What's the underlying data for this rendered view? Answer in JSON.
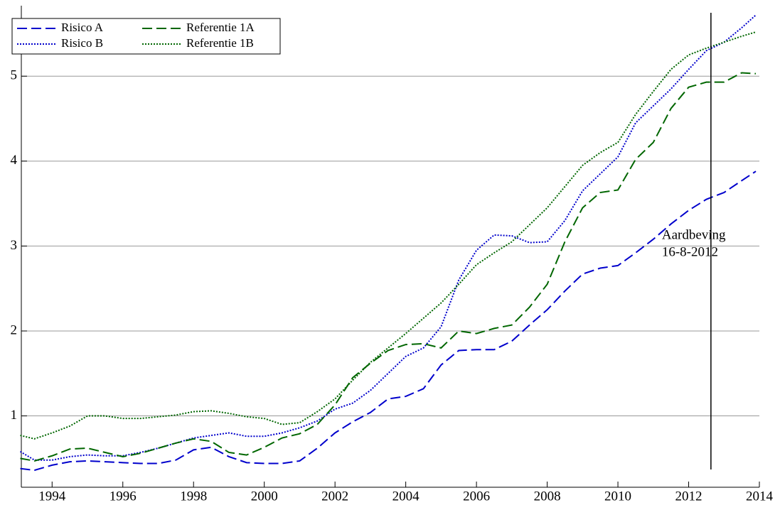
{
  "chart_data": {
    "type": "line",
    "x": [
      1993.1,
      1993.5,
      1994,
      1994.5,
      1995,
      1995.5,
      1996,
      1996.5,
      1997,
      1997.5,
      1998,
      1998.5,
      1999,
      1999.5,
      2000,
      2000.5,
      2001,
      2001.5,
      2002,
      2002.5,
      2003,
      2003.5,
      2004,
      2004.5,
      2005,
      2005.5,
      2006,
      2006.5,
      2007,
      2007.5,
      2008,
      2008.5,
      2009,
      2009.5,
      2010,
      2010.5,
      2011,
      2011.5,
      2012,
      2012.5,
      2013,
      2013.5,
      2013.9
    ],
    "series": [
      {
        "name": "Risico A",
        "color": "#0000cc",
        "dash": "dashed",
        "values": [
          0.38,
          0.36,
          0.42,
          0.46,
          0.47,
          0.46,
          0.45,
          0.44,
          0.44,
          0.48,
          0.6,
          0.63,
          0.52,
          0.45,
          0.44,
          0.44,
          0.47,
          0.62,
          0.8,
          0.93,
          1.04,
          1.2,
          1.23,
          1.32,
          1.6,
          1.77,
          1.78,
          1.78,
          1.88,
          2.07,
          2.25,
          2.47,
          2.67,
          2.74,
          2.77,
          2.92,
          3.08,
          3.26,
          3.42,
          3.55,
          3.63,
          3.77,
          3.88
        ]
      },
      {
        "name": "Risico B",
        "color": "#0000cc",
        "dash": "dotted",
        "values": [
          0.58,
          0.48,
          0.48,
          0.52,
          0.54,
          0.53,
          0.53,
          0.57,
          0.62,
          0.68,
          0.74,
          0.77,
          0.8,
          0.76,
          0.76,
          0.8,
          0.86,
          0.94,
          1.08,
          1.15,
          1.3,
          1.5,
          1.7,
          1.8,
          2.05,
          2.6,
          2.95,
          3.13,
          3.12,
          3.04,
          3.05,
          3.3,
          3.65,
          3.85,
          4.05,
          4.45,
          4.65,
          4.85,
          5.08,
          5.3,
          5.4,
          5.57,
          5.72
        ]
      },
      {
        "name": "Referentie 1A",
        "color": "#006600",
        "dash": "dashed",
        "values": [
          0.5,
          0.47,
          0.53,
          0.61,
          0.62,
          0.57,
          0.52,
          0.56,
          0.62,
          0.68,
          0.73,
          0.7,
          0.57,
          0.54,
          0.63,
          0.74,
          0.79,
          0.9,
          1.13,
          1.45,
          1.62,
          1.77,
          1.84,
          1.85,
          1.8,
          2.0,
          1.97,
          2.03,
          2.07,
          2.28,
          2.55,
          3.05,
          3.45,
          3.63,
          3.66,
          4.02,
          4.22,
          4.62,
          4.87,
          4.93,
          4.93,
          5.04,
          5.03
        ]
      },
      {
        "name": "Referentie 1B",
        "color": "#006600",
        "dash": "dotted",
        "values": [
          0.77,
          0.73,
          0.8,
          0.88,
          1.0,
          1.0,
          0.97,
          0.97,
          0.99,
          1.01,
          1.05,
          1.06,
          1.03,
          0.99,
          0.97,
          0.9,
          0.92,
          1.05,
          1.2,
          1.42,
          1.63,
          1.8,
          1.97,
          2.15,
          2.33,
          2.55,
          2.78,
          2.92,
          3.05,
          3.25,
          3.45,
          3.7,
          3.95,
          4.1,
          4.22,
          4.55,
          4.82,
          5.08,
          5.25,
          5.33,
          5.4,
          5.47,
          5.52
        ]
      }
    ],
    "xlim": [
      1993.13,
      2014
    ],
    "xticks": [
      1994,
      1996,
      1998,
      2000,
      2002,
      2004,
      2006,
      2008,
      2010,
      2012,
      2014
    ],
    "ylim": [
      0.16,
      5.83
    ],
    "yticks": [
      1,
      2,
      3,
      4,
      5
    ],
    "grid": true,
    "legend": "upper left",
    "annotation": {
      "x": 2012.63,
      "text": [
        "Aardbeving",
        "16-8-2012"
      ]
    }
  }
}
